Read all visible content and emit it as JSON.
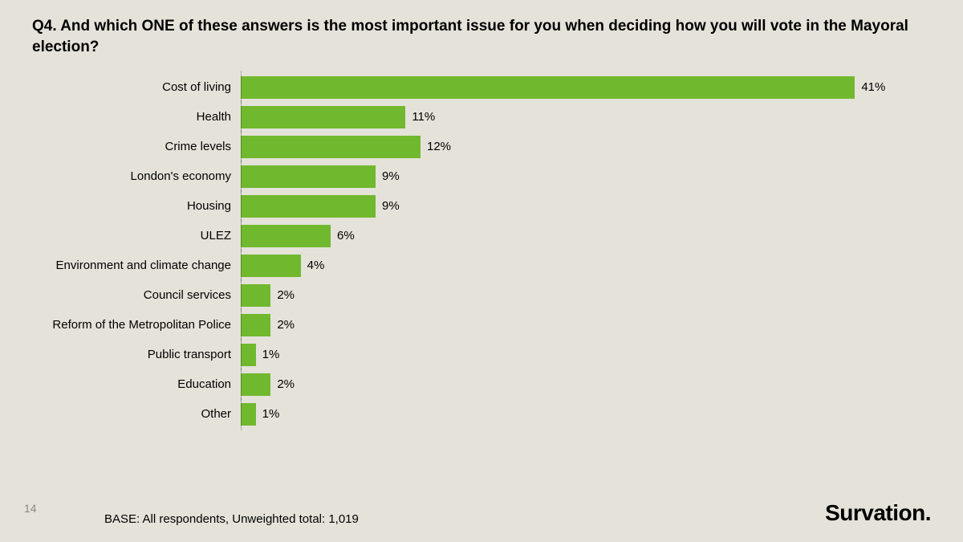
{
  "slide": {
    "title": "Q4. And which ONE of these answers is the most important issue for you when deciding how you will vote in the Mayoral election?",
    "page_number": "14",
    "base_text": "BASE: All respondents, Unweighted total: 1,019",
    "brand": "Survation."
  },
  "chart": {
    "type": "bar-horizontal",
    "xlim": [
      0,
      45
    ],
    "bar_color": "#70b82e",
    "background_color": "#e4e2d9",
    "axis_color": "rgba(0,0,0,0.25)",
    "label_fontsize": 15,
    "value_fontsize": 15,
    "title_fontsize": 19,
    "rows": [
      {
        "label": "Cost of living",
        "value": 41,
        "display": "41%"
      },
      {
        "label": "Health",
        "value": 11,
        "display": "11%"
      },
      {
        "label": "Crime levels",
        "value": 12,
        "display": "12%"
      },
      {
        "label": "London's economy",
        "value": 9,
        "display": "9%"
      },
      {
        "label": "Housing",
        "value": 9,
        "display": "9%"
      },
      {
        "label": "ULEZ",
        "value": 6,
        "display": "6%"
      },
      {
        "label": "Environment and climate change",
        "value": 4,
        "display": "4%"
      },
      {
        "label": "Council services",
        "value": 2,
        "display": "2%"
      },
      {
        "label": "Reform of the Metropolitan Police",
        "value": 2,
        "display": "2%"
      },
      {
        "label": "Public transport",
        "value": 1,
        "display": "1%"
      },
      {
        "label": "Education",
        "value": 2,
        "display": "2%"
      },
      {
        "label": "Other",
        "value": 1,
        "display": "1%"
      }
    ]
  }
}
